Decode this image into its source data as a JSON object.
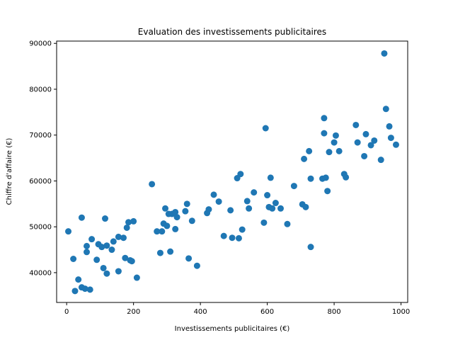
{
  "chart_data": {
    "type": "scatter",
    "title": "Evaluation des investissements publicitaires",
    "xlabel": "Investissements publicitaires (€)",
    "ylabel": "Chiffre d'affaire (€)",
    "xlim": [
      -30,
      1020
    ],
    "ylim": [
      33500,
      90500
    ],
    "xticks": [
      0,
      200,
      400,
      600,
      800,
      1000
    ],
    "yticks": [
      40000,
      50000,
      60000,
      70000,
      80000,
      90000
    ],
    "xtick_labels": [
      "0",
      "200",
      "400",
      "600",
      "800",
      "1000"
    ],
    "ytick_labels": [
      "40000",
      "50000",
      "60000",
      "70000",
      "80000",
      "90000"
    ],
    "grid": false,
    "color": "#1f77b4",
    "series": [
      {
        "name": "points",
        "x": [
          5,
          20,
          25,
          35,
          45,
          45,
          55,
          60,
          60,
          70,
          75,
          90,
          95,
          105,
          110,
          115,
          120,
          120,
          135,
          140,
          155,
          155,
          170,
          175,
          180,
          185,
          190,
          195,
          200,
          210,
          255,
          270,
          280,
          285,
          290,
          295,
          300,
          305,
          310,
          315,
          325,
          325,
          330,
          355,
          360,
          365,
          375,
          390,
          420,
          425,
          440,
          455,
          470,
          490,
          495,
          510,
          515,
          520,
          525,
          540,
          545,
          560,
          590,
          595,
          600,
          605,
          610,
          615,
          625,
          640,
          660,
          680,
          705,
          710,
          715,
          725,
          730,
          730,
          765,
          770,
          770,
          775,
          780,
          785,
          800,
          805,
          815,
          830,
          835,
          865,
          870,
          890,
          895,
          910,
          920,
          940,
          950,
          955,
          965,
          970,
          985
        ],
        "y": [
          49000,
          43000,
          36000,
          38500,
          52000,
          36800,
          36500,
          45800,
          44500,
          36300,
          47300,
          42800,
          46200,
          45600,
          41000,
          51800,
          39800,
          45900,
          45000,
          46800,
          47800,
          40300,
          47600,
          43200,
          49800,
          51000,
          42700,
          42500,
          51200,
          38900,
          59300,
          49000,
          44300,
          49000,
          50700,
          54000,
          50200,
          52800,
          44600,
          52800,
          49500,
          53200,
          52100,
          53400,
          55000,
          43100,
          51300,
          41500,
          53000,
          53800,
          57000,
          55500,
          48000,
          53600,
          47600,
          60600,
          47500,
          61500,
          49400,
          55600,
          54000,
          57500,
          50900,
          71500,
          56900,
          54300,
          60700,
          54000,
          55200,
          54000,
          50600,
          58900,
          54900,
          64800,
          54300,
          66500,
          45600,
          60500,
          60500,
          73700,
          70400,
          60700,
          57800,
          66300,
          68400,
          69900,
          66500,
          61500,
          60800,
          72200,
          68400,
          65400,
          70200,
          67800,
          68800,
          64600,
          87800,
          75700,
          71900,
          69400,
          67900
        ]
      }
    ]
  }
}
